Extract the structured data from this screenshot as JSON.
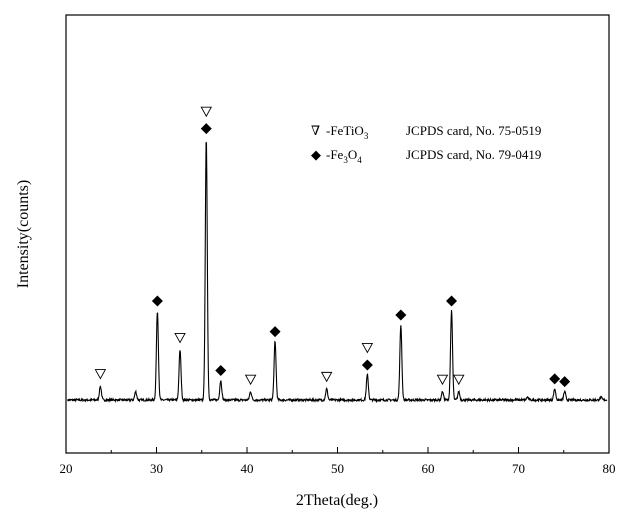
{
  "chart_data": {
    "type": "line",
    "title": "",
    "xlabel": "2Theta(deg.)",
    "ylabel": "Intensity(counts)",
    "xlim": [
      20,
      80
    ],
    "x_ticks": [
      "20",
      "30",
      "40",
      "50",
      "60",
      "70",
      "80"
    ],
    "y_ticks_labeled": false,
    "grid": false,
    "legend_position": "top-right",
    "legend": [
      {
        "symbol": "∇",
        "marker": "open-triangle-down",
        "name_main": "-FeTiO",
        "name_sub": "3",
        "card": "JCPDS card, No. 75-0519"
      },
      {
        "symbol": "◆",
        "marker": "filled-diamond",
        "name_main": "-Fe",
        "name_sub": "3",
        "name_main2": "O",
        "name_sub2": "4",
        "card": "JCPDS card, No. 79-0419"
      }
    ],
    "series": [
      {
        "baseline": 0.06,
        "noise": 0.004,
        "peaks": [
          {
            "x": 23.8,
            "y": 0.11
          },
          {
            "x": 27.7,
            "y": 0.09
          },
          {
            "x": 30.1,
            "y": 0.38
          },
          {
            "x": 32.6,
            "y": 0.24
          },
          {
            "x": 35.5,
            "y": 1.0
          },
          {
            "x": 37.1,
            "y": 0.13
          },
          {
            "x": 40.4,
            "y": 0.09
          },
          {
            "x": 43.1,
            "y": 0.27
          },
          {
            "x": 48.8,
            "y": 0.1
          },
          {
            "x": 53.3,
            "y": 0.15
          },
          {
            "x": 57.0,
            "y": 0.33
          },
          {
            "x": 61.6,
            "y": 0.09
          },
          {
            "x": 62.6,
            "y": 0.38
          },
          {
            "x": 63.4,
            "y": 0.09
          },
          {
            "x": 71.0,
            "y": 0.07
          },
          {
            "x": 74.0,
            "y": 0.1
          },
          {
            "x": 75.1,
            "y": 0.09
          },
          {
            "x": 79.1,
            "y": 0.07
          }
        ]
      }
    ],
    "markers": {
      "feTiO3_triangle": [
        23.8,
        32.6,
        35.5,
        40.4,
        48.8,
        53.3,
        61.6,
        63.4
      ],
      "fe3O4_diamond": [
        30.1,
        35.5,
        37.1,
        43.1,
        53.3,
        57.0,
        62.6,
        74.0,
        75.1
      ]
    }
  }
}
